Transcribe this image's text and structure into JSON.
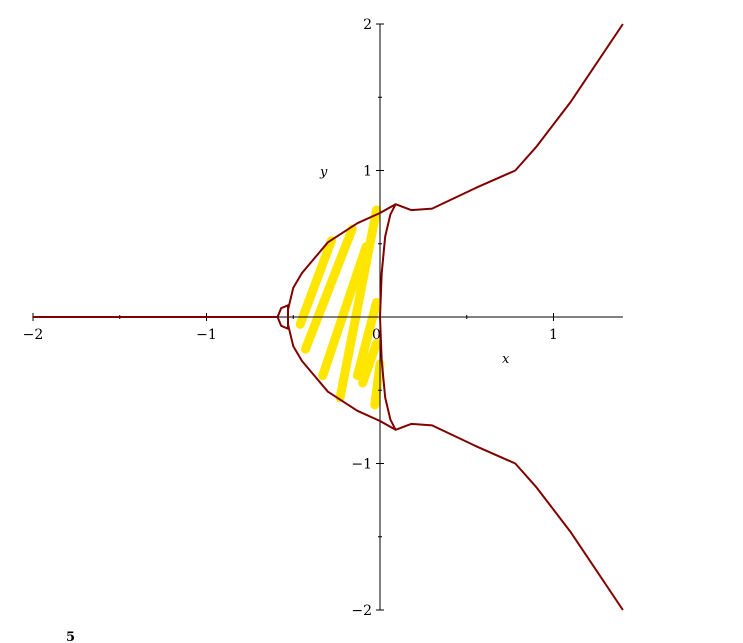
{
  "chart_data": {
    "type": "line",
    "title": "",
    "xlabel": "x",
    "ylabel": "y",
    "xlim": [
      -2,
      1.4
    ],
    "ylim": [
      -2,
      2
    ],
    "grid": false,
    "legend": "none",
    "x_ticks": [
      {
        "value": -2,
        "label": "−2"
      },
      {
        "value": -1,
        "label": "−1"
      },
      {
        "value": 0,
        "label": "0"
      },
      {
        "value": 1,
        "label": "1"
      }
    ],
    "y_ticks": [
      {
        "value": 2,
        "label": "2"
      },
      {
        "value": 1,
        "label": "1"
      },
      {
        "value": -1,
        "label": "−1"
      },
      {
        "value": -2,
        "label": "−2"
      }
    ],
    "curve_color": "#800000",
    "highlight_color": "#FFE600",
    "series": [
      {
        "points": [
          [
            1.4,
            2.0
          ],
          [
            1.1,
            1.47
          ],
          [
            0.9,
            1.16
          ],
          [
            0.78,
            1.0
          ],
          [
            0.55,
            0.88
          ],
          [
            0.3,
            0.74
          ],
          [
            0.18,
            0.73
          ],
          [
            0.09,
            0.77
          ],
          [
            0.0,
            0.71
          ],
          [
            -0.13,
            0.64
          ],
          [
            -0.3,
            0.51
          ],
          [
            -0.45,
            0.3
          ],
          [
            -0.5,
            0.2
          ],
          [
            -0.53,
            0.05
          ],
          [
            -0.53,
            -0.05
          ],
          [
            -0.5,
            -0.2
          ],
          [
            -0.45,
            -0.3
          ],
          [
            -0.3,
            -0.51
          ],
          [
            -0.13,
            -0.64
          ],
          [
            0.0,
            -0.71
          ],
          [
            0.09,
            -0.77
          ],
          [
            0.18,
            -0.73
          ],
          [
            0.3,
            -0.74
          ],
          [
            0.55,
            -0.88
          ],
          [
            0.78,
            -1.0
          ],
          [
            0.9,
            -1.16
          ],
          [
            1.1,
            -1.47
          ],
          [
            1.4,
            -2.0
          ]
        ]
      },
      {
        "points": [
          [
            0.09,
            0.77
          ],
          [
            0.06,
            0.7
          ],
          [
            0.03,
            0.55
          ],
          [
            0.01,
            0.3
          ],
          [
            0.0,
            0.0
          ],
          [
            0.01,
            -0.3
          ],
          [
            0.03,
            -0.55
          ],
          [
            0.06,
            -0.7
          ],
          [
            0.09,
            -0.77
          ]
        ]
      },
      {
        "points": [
          [
            -2.0,
            0.0
          ],
          [
            -1.0,
            0.0
          ],
          [
            -0.59,
            0.0
          ],
          [
            -0.57,
            0.06
          ],
          [
            -0.53,
            0.08
          ],
          [
            -0.53,
            -0.08
          ],
          [
            -0.57,
            -0.06
          ],
          [
            -0.59,
            0.0
          ]
        ]
      }
    ],
    "highlight_strokes": [
      [
        [
          -0.46,
          -0.05
        ],
        [
          -0.28,
          0.52
        ]
      ],
      [
        [
          -0.43,
          -0.22
        ],
        [
          -0.16,
          0.6
        ]
      ],
      [
        [
          -0.33,
          -0.4
        ],
        [
          -0.08,
          0.48
        ]
      ],
      [
        [
          -0.23,
          -0.55
        ],
        [
          -0.02,
          0.73
        ]
      ],
      [
        [
          -0.13,
          -0.4
        ],
        [
          -0.02,
          0.1
        ]
      ],
      [
        [
          -0.1,
          -0.45
        ],
        [
          -0.02,
          -0.18
        ]
      ],
      [
        [
          -0.03,
          -0.6
        ],
        [
          0.0,
          -0.32
        ]
      ]
    ]
  },
  "stray_mark": "5"
}
